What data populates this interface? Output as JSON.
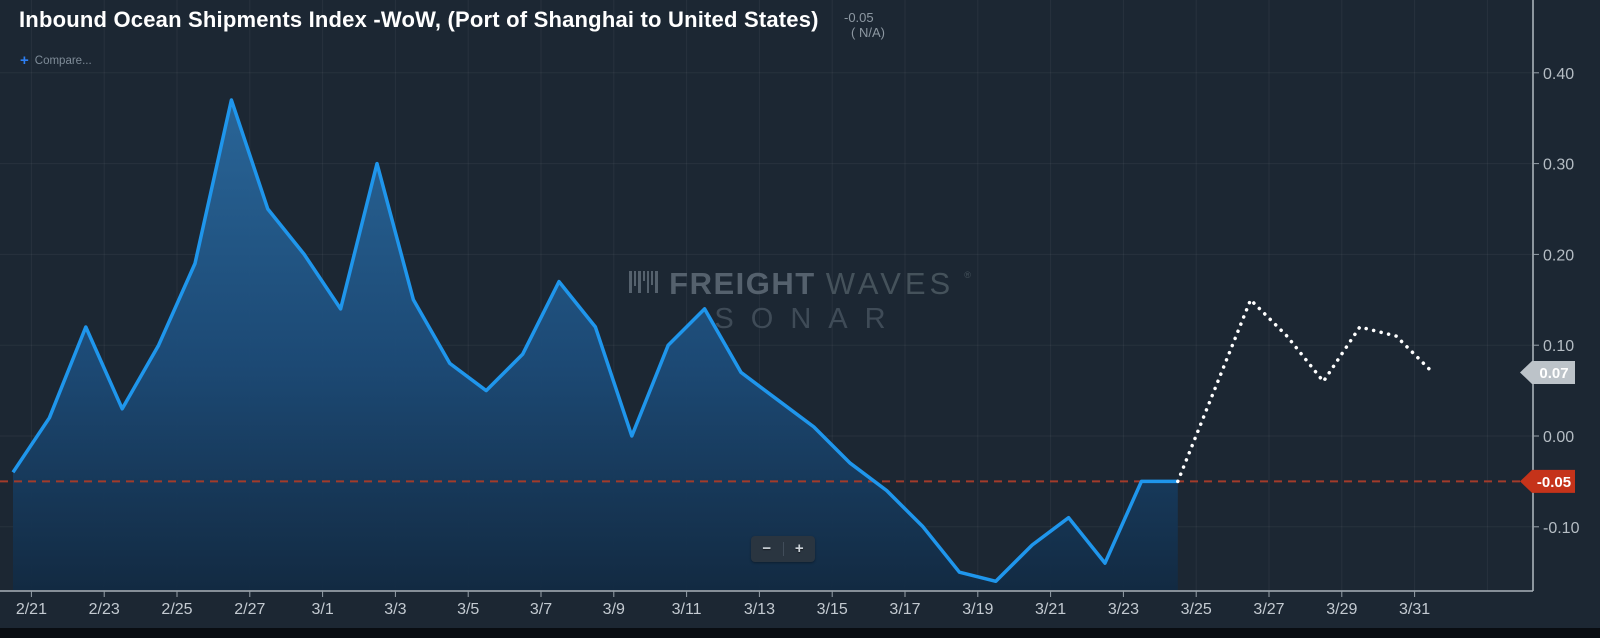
{
  "header": {
    "title": "Inbound Ocean Shipments Index -WoW, (Port of Shanghai to United States)",
    "value": "-0.05",
    "value_note": "( N/A)",
    "compare_icon": "+",
    "compare_label": "Compare..."
  },
  "watermark": {
    "brand_bold": "FREIGHT",
    "brand_light": "WAVES",
    "reg": "®",
    "product": "SONAR"
  },
  "controls": {
    "zoom_out": "−",
    "zoom_in": "+"
  },
  "colors": {
    "background": "#1c2733",
    "line": "#1f96ec",
    "area_top": "#2a689c",
    "area_bottom": "#122a42",
    "forecast": "#ffffff",
    "grid": "rgba(255,255,255,0.05)",
    "axis": "#a9b2b9",
    "tick": "#97a1aa",
    "x_label": "#c3cad1",
    "y_label": "#b5bdc4",
    "reference": "#a23b2a",
    "badge_gray": "#bcc3c9",
    "badge_red": "#c5331a",
    "badge_text": "#ffffff"
  },
  "chart_data": {
    "type": "area",
    "title": "Inbound Ocean Shipments Index -WoW, (Port of Shanghai to United States)",
    "dates": [
      "2/20",
      "2/21",
      "2/22",
      "2/23",
      "2/24",
      "2/25",
      "2/26",
      "2/27",
      "2/28",
      "3/1",
      "3/2",
      "3/3",
      "3/4",
      "3/5",
      "3/6",
      "3/7",
      "3/8",
      "3/9",
      "3/10",
      "3/11",
      "3/12",
      "3/13",
      "3/14",
      "3/15",
      "3/16",
      "3/17",
      "3/18",
      "3/19",
      "3/20",
      "3/21",
      "3/22",
      "3/23",
      "3/24",
      "3/25",
      "3/26",
      "3/27",
      "3/28",
      "3/29",
      "3/30",
      "3/31"
    ],
    "series": [
      {
        "name": "actual",
        "style": "solid-area",
        "start_date": "2/20",
        "values": [
          -0.04,
          0.02,
          0.12,
          0.03,
          0.1,
          0.19,
          0.37,
          0.25,
          0.2,
          0.14,
          0.3,
          0.15,
          0.08,
          0.05,
          0.09,
          0.17,
          0.12,
          0.0,
          0.1,
          0.14,
          0.07,
          0.04,
          0.01,
          -0.03,
          -0.06,
          -0.1,
          -0.15,
          -0.16,
          -0.12,
          -0.09,
          -0.14,
          -0.05,
          -0.05
        ]
      },
      {
        "name": "forecast",
        "style": "dotted",
        "start_date": "3/24",
        "values": [
          -0.05,
          0.05,
          0.15,
          0.11,
          0.06,
          0.12,
          0.11,
          0.07
        ]
      }
    ],
    "x_tick_labels": [
      "2/21",
      "2/23",
      "2/25",
      "2/27",
      "3/1",
      "3/3",
      "3/5",
      "3/7",
      "3/9",
      "3/11",
      "3/13",
      "3/15",
      "3/17",
      "3/19",
      "3/21",
      "3/23",
      "3/25",
      "3/27",
      "3/29",
      "3/31"
    ],
    "y_ticks": [
      0.4,
      0.3,
      0.2,
      0.1,
      0.0,
      -0.1
    ],
    "y_tick_labels": [
      "0.40",
      "0.30",
      "0.20",
      "0.10",
      "0.00",
      "-0.10"
    ],
    "ylim": [
      -0.17,
      0.48
    ],
    "grid": true,
    "legend": false,
    "reference_line": {
      "value": -0.05,
      "label": "-0.05"
    },
    "badges": [
      {
        "label": "0.07",
        "value": 0.07,
        "bg": "#bcc3c9"
      },
      {
        "label": "-0.05",
        "value": -0.05,
        "bg": "#c5331a"
      }
    ]
  }
}
